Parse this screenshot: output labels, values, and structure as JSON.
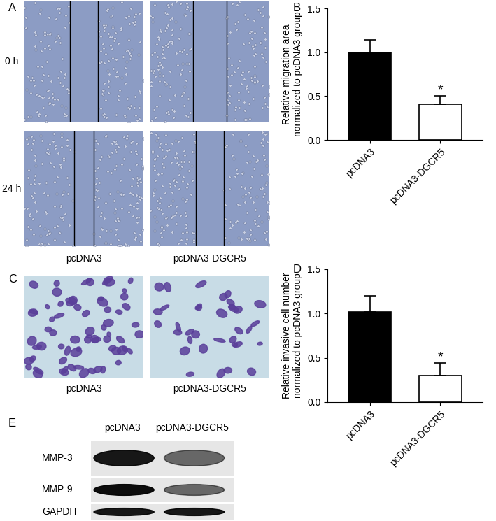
{
  "chart_data": [
    {
      "type": "bar",
      "panel_label": "B",
      "y_label": "Relative migration area\nnormalized to pcDNA3 group",
      "categories": [
        "pcDNA3",
        "pcDNA3-DGCR5"
      ],
      "values": [
        1.0,
        0.41
      ],
      "errors": [
        0.14,
        0.09
      ],
      "colors": [
        "#000000",
        "#ffffff"
      ],
      "ylim": [
        0.0,
        1.5
      ],
      "yticks": [
        0.0,
        0.5,
        1.0,
        1.5
      ],
      "annotations": [
        {
          "x": "pcDNA3-DGCR5",
          "text": "*"
        }
      ]
    },
    {
      "type": "bar",
      "panel_label": "D",
      "y_label": "Relative invasive cell number\nnormalized to pcDNA3 group",
      "categories": [
        "pcDNA3",
        "pcDNA3-DGCR5"
      ],
      "values": [
        1.02,
        0.3
      ],
      "errors": [
        0.18,
        0.14
      ],
      "colors": [
        "#000000",
        "#ffffff"
      ],
      "ylim": [
        0.0,
        1.5
      ],
      "yticks": [
        0.0,
        0.5,
        1.0,
        1.5
      ],
      "annotations": [
        {
          "x": "pcDNA3-DGCR5",
          "text": "*"
        }
      ]
    }
  ],
  "image_panels": {
    "A": {
      "label": "A",
      "rows": [
        "0 h",
        "24 h"
      ],
      "columns": [
        "pcDNA3",
        "pcDNA3-DGCR5"
      ]
    },
    "C": {
      "label": "C",
      "columns": [
        "pcDNA3",
        "pcDNA3-DGCR5"
      ]
    },
    "E": {
      "label": "E",
      "columns": [
        "pcDNA3",
        "pcDNA3-DGCR5"
      ],
      "rows": [
        "MMP-3",
        "MMP-9",
        "GAPDH"
      ]
    }
  }
}
